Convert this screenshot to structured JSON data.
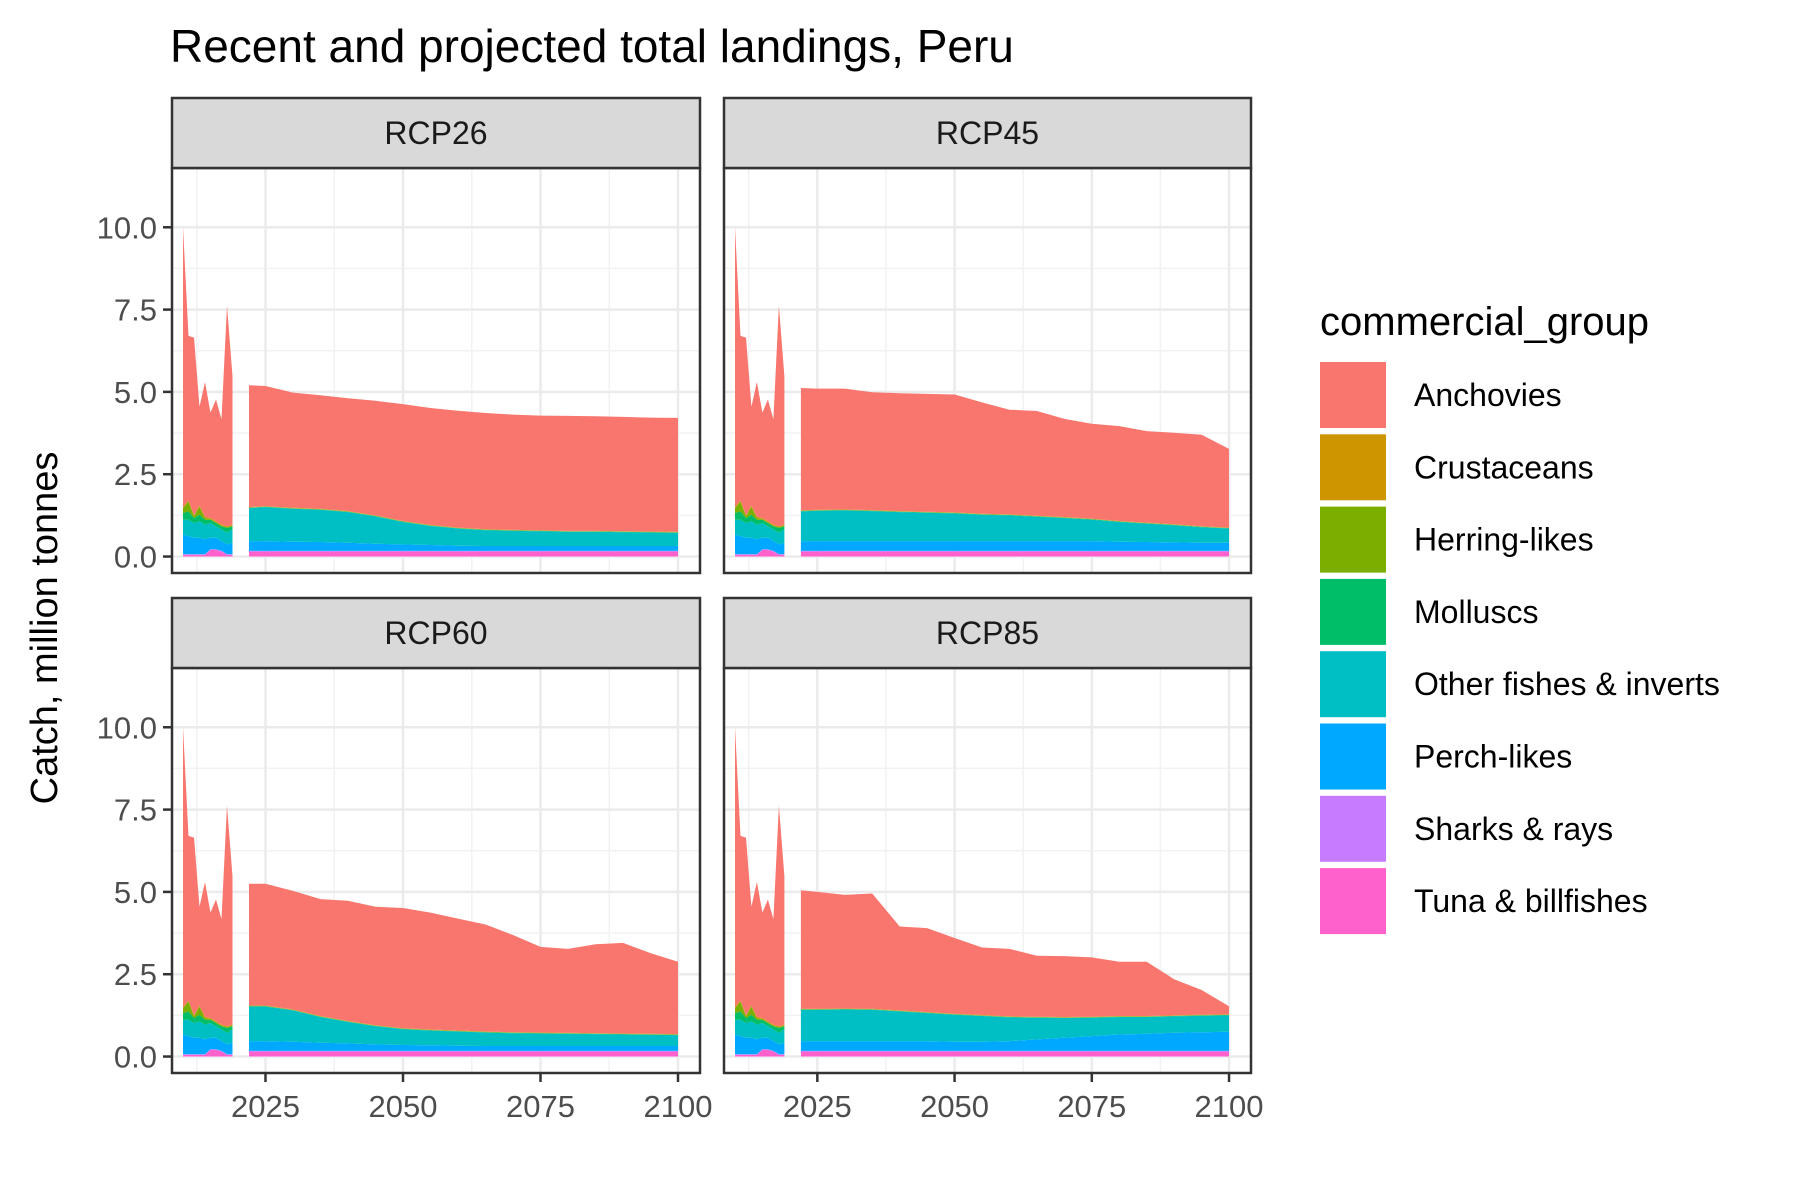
{
  "chart_data": {
    "type": "area",
    "stacked": true,
    "title": "Recent and projected total landings, Peru",
    "ylabel": "Catch, million tonnes",
    "xlabel": "",
    "xlim": [
      2008,
      2104
    ],
    "ylim": [
      -0.5,
      11.8
    ],
    "x_ticks": [
      2025,
      2050,
      2075,
      2100
    ],
    "y_ticks": [
      0,
      2.5,
      5,
      7.5,
      10
    ],
    "y_tick_labels": [
      "0.0",
      "2.5",
      "5.0",
      "7.5",
      "10.0"
    ],
    "x_tick_labels": [
      "2025",
      "2050",
      "2075",
      "2100"
    ],
    "grid": true,
    "legend_title": "commercial_group",
    "legend_position": "right",
    "groups": [
      {
        "name": "Anchovies",
        "color": "#F8766D"
      },
      {
        "name": "Crustaceans",
        "color": "#CD9600"
      },
      {
        "name": "Herring-likes",
        "color": "#7CAE00"
      },
      {
        "name": "Molluscs",
        "color": "#00BE67"
      },
      {
        "name": "Other fishes & inverts",
        "color": "#00BFC4"
      },
      {
        "name": "Perch-likes",
        "color": "#00A9FF"
      },
      {
        "name": "Sharks & rays",
        "color": "#C77CFF"
      },
      {
        "name": "Tuna & billfishes",
        "color": "#FF61CC"
      }
    ],
    "historical": {
      "x": [
        2010,
        2011,
        2012,
        2013,
        2014,
        2015,
        2016,
        2017,
        2018,
        2019
      ],
      "series": [
        {
          "name": "Tuna & billfishes",
          "values": [
            0.05,
            0.05,
            0.05,
            0.05,
            0.05,
            0.2,
            0.2,
            0.15,
            0.05,
            0.05
          ]
        },
        {
          "name": "Sharks & rays",
          "values": [
            0.02,
            0.02,
            0.02,
            0.02,
            0.02,
            0.02,
            0.02,
            0.02,
            0.02,
            0.02
          ]
        },
        {
          "name": "Perch-likes",
          "values": [
            0.6,
            0.55,
            0.5,
            0.5,
            0.45,
            0.35,
            0.35,
            0.3,
            0.3,
            0.35
          ]
        },
        {
          "name": "Other fishes & inverts",
          "values": [
            0.45,
            0.5,
            0.45,
            0.5,
            0.45,
            0.45,
            0.35,
            0.35,
            0.35,
            0.4
          ]
        },
        {
          "name": "Molluscs",
          "values": [
            0.2,
            0.25,
            0.15,
            0.2,
            0.15,
            0.1,
            0.1,
            0.1,
            0.15,
            0.1
          ]
        },
        {
          "name": "Herring-likes",
          "values": [
            0.15,
            0.3,
            0.05,
            0.25,
            0.05,
            0.02,
            0.02,
            0.02,
            0.02,
            0.02
          ]
        },
        {
          "name": "Crustaceans",
          "values": [
            0.03,
            0.03,
            0.03,
            0.03,
            0.03,
            0.03,
            0.03,
            0.03,
            0.03,
            0.03
          ]
        },
        {
          "name": "Anchovies",
          "values": [
            8.5,
            5.0,
            5.4,
            3.0,
            4.1,
            3.2,
            3.7,
            3.2,
            6.7,
            4.5
          ]
        }
      ]
    },
    "projection_x": [
      2022,
      2025,
      2030,
      2035,
      2040,
      2045,
      2050,
      2055,
      2060,
      2065,
      2070,
      2075,
      2080,
      2085,
      2090,
      2095,
      2100
    ],
    "panels": [
      {
        "label": "RCP26",
        "series": [
          {
            "name": "Tuna & billfishes",
            "values": [
              0.15,
              0.15,
              0.15,
              0.15,
              0.15,
              0.15,
              0.15,
              0.15,
              0.15,
              0.15,
              0.15,
              0.15,
              0.15,
              0.15,
              0.15,
              0.15,
              0.15
            ]
          },
          {
            "name": "Sharks & rays",
            "values": [
              0.02,
              0.02,
              0.02,
              0.02,
              0.02,
              0.02,
              0.02,
              0.02,
              0.02,
              0.02,
              0.02,
              0.02,
              0.02,
              0.02,
              0.02,
              0.02,
              0.02
            ]
          },
          {
            "name": "Perch-likes",
            "values": [
              0.3,
              0.3,
              0.28,
              0.27,
              0.25,
              0.22,
              0.2,
              0.18,
              0.16,
              0.15,
              0.15,
              0.15,
              0.15,
              0.15,
              0.15,
              0.15,
              0.15
            ]
          },
          {
            "name": "Other fishes & inverts",
            "values": [
              1.0,
              1.03,
              1.0,
              0.98,
              0.93,
              0.83,
              0.68,
              0.58,
              0.52,
              0.48,
              0.46,
              0.45,
              0.43,
              0.43,
              0.42,
              0.41,
              0.4
            ]
          },
          {
            "name": "Molluscs",
            "values": [
              0.01,
              0.01,
              0.01,
              0.01,
              0.01,
              0.01,
              0.01,
              0.01,
              0.01,
              0.01,
              0.01,
              0.01,
              0.01,
              0.01,
              0.01,
              0.01,
              0.01
            ]
          },
          {
            "name": "Herring-likes",
            "values": [
              0.01,
              0.01,
              0.01,
              0.01,
              0.01,
              0.01,
              0.01,
              0.01,
              0.01,
              0.01,
              0.01,
              0.01,
              0.01,
              0.01,
              0.01,
              0.01,
              0.01
            ]
          },
          {
            "name": "Crustaceans",
            "values": [
              0.01,
              0.01,
              0.01,
              0.01,
              0.01,
              0.01,
              0.01,
              0.01,
              0.01,
              0.01,
              0.01,
              0.01,
              0.01,
              0.01,
              0.01,
              0.01,
              0.01
            ]
          },
          {
            "name": "Anchovies",
            "values": [
              3.7,
              3.65,
              3.5,
              3.45,
              3.43,
              3.48,
              3.55,
              3.55,
              3.55,
              3.53,
              3.5,
              3.48,
              3.49,
              3.48,
              3.47,
              3.46,
              3.46
            ]
          }
        ]
      },
      {
        "label": "RCP45",
        "series": [
          {
            "name": "Tuna & billfishes",
            "values": [
              0.15,
              0.15,
              0.15,
              0.15,
              0.15,
              0.15,
              0.15,
              0.15,
              0.15,
              0.15,
              0.15,
              0.15,
              0.15,
              0.15,
              0.15,
              0.15,
              0.15
            ]
          },
          {
            "name": "Sharks & rays",
            "values": [
              0.02,
              0.02,
              0.02,
              0.02,
              0.02,
              0.02,
              0.02,
              0.02,
              0.02,
              0.02,
              0.02,
              0.02,
              0.02,
              0.02,
              0.02,
              0.02,
              0.02
            ]
          },
          {
            "name": "Perch-likes",
            "values": [
              0.3,
              0.3,
              0.3,
              0.3,
              0.3,
              0.3,
              0.3,
              0.3,
              0.3,
              0.3,
              0.3,
              0.3,
              0.28,
              0.27,
              0.26,
              0.25,
              0.25
            ]
          },
          {
            "name": "Other fishes & inverts",
            "values": [
              0.9,
              0.92,
              0.93,
              0.91,
              0.88,
              0.86,
              0.84,
              0.8,
              0.78,
              0.74,
              0.7,
              0.65,
              0.6,
              0.56,
              0.52,
              0.47,
              0.43
            ]
          },
          {
            "name": "Molluscs",
            "values": [
              0.01,
              0.01,
              0.01,
              0.01,
              0.01,
              0.01,
              0.01,
              0.01,
              0.01,
              0.01,
              0.01,
              0.01,
              0.01,
              0.01,
              0.01,
              0.01,
              0.01
            ]
          },
          {
            "name": "Herring-likes",
            "values": [
              0.01,
              0.01,
              0.01,
              0.01,
              0.01,
              0.01,
              0.01,
              0.01,
              0.01,
              0.01,
              0.01,
              0.01,
              0.01,
              0.01,
              0.01,
              0.01,
              0.01
            ]
          },
          {
            "name": "Crustaceans",
            "values": [
              0.01,
              0.01,
              0.01,
              0.01,
              0.01,
              0.01,
              0.01,
              0.01,
              0.01,
              0.01,
              0.01,
              0.01,
              0.01,
              0.01,
              0.01,
              0.01,
              0.01
            ]
          },
          {
            "name": "Anchovies",
            "values": [
              3.72,
              3.68,
              3.67,
              3.58,
              3.58,
              3.58,
              3.58,
              3.38,
              3.18,
              3.18,
              2.98,
              2.88,
              2.88,
              2.78,
              2.78,
              2.78,
              2.39
            ]
          }
        ]
      },
      {
        "label": "RCP60",
        "series": [
          {
            "name": "Tuna & billfishes",
            "values": [
              0.15,
              0.15,
              0.15,
              0.15,
              0.15,
              0.15,
              0.15,
              0.15,
              0.15,
              0.15,
              0.15,
              0.15,
              0.15,
              0.15,
              0.15,
              0.15,
              0.15
            ]
          },
          {
            "name": "Sharks & rays",
            "values": [
              0.02,
              0.02,
              0.02,
              0.02,
              0.02,
              0.02,
              0.02,
              0.02,
              0.02,
              0.02,
              0.02,
              0.02,
              0.02,
              0.02,
              0.02,
              0.02,
              0.02
            ]
          },
          {
            "name": "Perch-likes",
            "values": [
              0.3,
              0.3,
              0.28,
              0.25,
              0.23,
              0.2,
              0.18,
              0.17,
              0.16,
              0.15,
              0.15,
              0.15,
              0.15,
              0.15,
              0.15,
              0.15,
              0.15
            ]
          },
          {
            "name": "Other fishes & inverts",
            "values": [
              1.05,
              1.05,
              0.95,
              0.78,
              0.65,
              0.55,
              0.48,
              0.45,
              0.43,
              0.41,
              0.39,
              0.38,
              0.37,
              0.36,
              0.35,
              0.34,
              0.33
            ]
          },
          {
            "name": "Molluscs",
            "values": [
              0.01,
              0.01,
              0.01,
              0.01,
              0.01,
              0.01,
              0.01,
              0.01,
              0.01,
              0.01,
              0.01,
              0.01,
              0.01,
              0.01,
              0.01,
              0.01,
              0.01
            ]
          },
          {
            "name": "Herring-likes",
            "values": [
              0.01,
              0.01,
              0.01,
              0.01,
              0.01,
              0.01,
              0.01,
              0.01,
              0.01,
              0.01,
              0.01,
              0.01,
              0.01,
              0.01,
              0.01,
              0.01,
              0.01
            ]
          },
          {
            "name": "Crustaceans",
            "values": [
              0.01,
              0.01,
              0.01,
              0.01,
              0.01,
              0.01,
              0.01,
              0.01,
              0.01,
              0.01,
              0.01,
              0.01,
              0.01,
              0.01,
              0.01,
              0.01,
              0.01
            ]
          },
          {
            "name": "Anchovies",
            "values": [
              3.7,
              3.7,
              3.6,
              3.55,
              3.65,
              3.6,
              3.65,
              3.55,
              3.4,
              3.25,
              2.95,
              2.6,
              2.55,
              2.7,
              2.75,
              2.45,
              2.2
            ]
          }
        ]
      },
      {
        "label": "RCP85",
        "series": [
          {
            "name": "Tuna & billfishes",
            "values": [
              0.15,
              0.15,
              0.15,
              0.15,
              0.15,
              0.15,
              0.15,
              0.15,
              0.15,
              0.15,
              0.15,
              0.15,
              0.15,
              0.15,
              0.15,
              0.15,
              0.15
            ]
          },
          {
            "name": "Sharks & rays",
            "values": [
              0.02,
              0.02,
              0.02,
              0.02,
              0.02,
              0.02,
              0.02,
              0.02,
              0.02,
              0.02,
              0.02,
              0.02,
              0.02,
              0.02,
              0.02,
              0.02,
              0.02
            ]
          },
          {
            "name": "Perch-likes",
            "values": [
              0.3,
              0.3,
              0.3,
              0.3,
              0.3,
              0.3,
              0.28,
              0.28,
              0.3,
              0.35,
              0.4,
              0.45,
              0.5,
              0.52,
              0.55,
              0.57,
              0.58
            ]
          },
          {
            "name": "Other fishes & inverts",
            "values": [
              0.95,
              0.95,
              0.96,
              0.95,
              0.9,
              0.85,
              0.82,
              0.78,
              0.72,
              0.66,
              0.6,
              0.56,
              0.53,
              0.51,
              0.5,
              0.5,
              0.5
            ]
          },
          {
            "name": "Molluscs",
            "values": [
              0.01,
              0.01,
              0.01,
              0.01,
              0.01,
              0.01,
              0.01,
              0.01,
              0.01,
              0.01,
              0.01,
              0.01,
              0.01,
              0.01,
              0.01,
              0.01,
              0.01
            ]
          },
          {
            "name": "Herring-likes",
            "values": [
              0.01,
              0.01,
              0.01,
              0.01,
              0.01,
              0.01,
              0.01,
              0.01,
              0.01,
              0.01,
              0.01,
              0.01,
              0.01,
              0.01,
              0.01,
              0.01,
              0.01
            ]
          },
          {
            "name": "Crustaceans",
            "values": [
              0.01,
              0.01,
              0.01,
              0.01,
              0.01,
              0.01,
              0.01,
              0.01,
              0.01,
              0.01,
              0.01,
              0.01,
              0.01,
              0.01,
              0.01,
              0.01,
              0.01
            ]
          },
          {
            "name": "Anchovies",
            "values": [
              3.6,
              3.55,
              3.45,
              3.5,
              2.55,
              2.55,
              2.3,
              2.05,
              2.05,
              1.85,
              1.85,
              1.8,
              1.65,
              1.65,
              1.1,
              0.75,
              0.25
            ]
          }
        ]
      }
    ]
  }
}
